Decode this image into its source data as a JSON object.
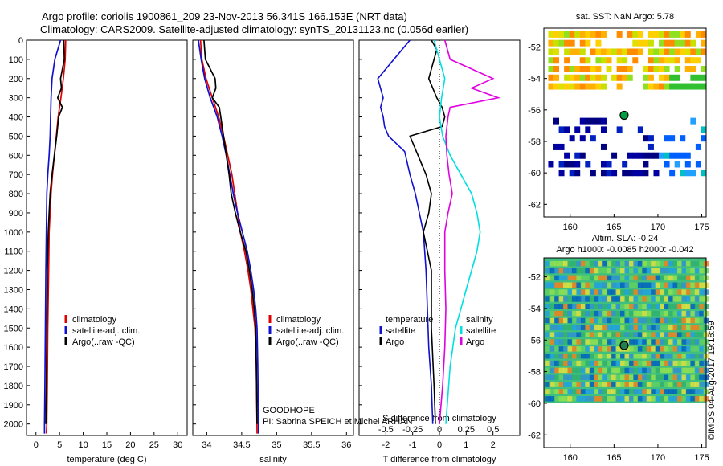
{
  "header": {
    "title_line1": "Argo profile: coriolis 1900861_209 23-Nov-2013 56.341S 166.153E (NRT data)",
    "title_line2": "Climatology: CARS2009. Satellite-adjusted climatology: synTS_20131123.nc (0.056d earlier)"
  },
  "colors": {
    "climatology": "#e00000",
    "satellite": "#1010d0",
    "argo": "#000000",
    "argo_salinity": "#e000e0",
    "satellite_salinity": "#00e0e0"
  },
  "chart_data": [
    {
      "type": "line",
      "id": "temperature",
      "xlabel": "temperature (deg C)",
      "ylabel": "",
      "xlim": [
        -2,
        32
      ],
      "ylim": [
        2060,
        0
      ],
      "x_ticks": [
        "0",
        "5",
        "10",
        "15",
        "20",
        "25",
        "30"
      ],
      "y_ticks": [
        "0",
        "100",
        "200",
        "300",
        "400",
        "500",
        "600",
        "700",
        "800",
        "900",
        "1000",
        "1100",
        "1200",
        "1300",
        "1400",
        "1500",
        "1600",
        "1700",
        "1800",
        "1900",
        "2000"
      ],
      "legend": [
        "climatology",
        "satellite-adj. clim.",
        "Argo(..raw -QC)"
      ],
      "series": [
        {
          "name": "climatology",
          "points": [
            [
              6.3,
              0
            ],
            [
              6.2,
              100
            ],
            [
              5.8,
              200
            ],
            [
              5.3,
              300
            ],
            [
              4.7,
              400
            ],
            [
              4.3,
              500
            ],
            [
              3.9,
              600
            ],
            [
              3.5,
              700
            ],
            [
              3.2,
              800
            ],
            [
              3.0,
              900
            ],
            [
              2.8,
              1000
            ],
            [
              2.7,
              1200
            ],
            [
              2.5,
              1500
            ],
            [
              2.4,
              1800
            ],
            [
              2.3,
              2000
            ],
            [
              2.2,
              2050
            ]
          ]
        },
        {
          "name": "satellite-adj. clim.",
          "points": [
            [
              5.2,
              0
            ],
            [
              4.0,
              100
            ],
            [
              3.4,
              200
            ],
            [
              3.2,
              300
            ],
            [
              3.1,
              400
            ],
            [
              3.0,
              500
            ],
            [
              2.8,
              600
            ],
            [
              2.5,
              700
            ],
            [
              2.3,
              800
            ],
            [
              2.2,
              1000
            ],
            [
              2.1,
              1200
            ],
            [
              2.0,
              1500
            ],
            [
              1.9,
              1800
            ],
            [
              1.8,
              2000
            ],
            [
              1.8,
              2050
            ]
          ]
        },
        {
          "name": "Argo(..raw -QC)",
          "points": [
            [
              5.9,
              0
            ],
            [
              6.0,
              100
            ],
            [
              5.2,
              200
            ],
            [
              5.4,
              250
            ],
            [
              4.6,
              300
            ],
            [
              5.6,
              350
            ],
            [
              4.8,
              400
            ],
            [
              4.4,
              500
            ],
            [
              3.9,
              600
            ],
            [
              3.4,
              700
            ],
            [
              3.0,
              800
            ],
            [
              2.8,
              900
            ],
            [
              2.6,
              1000
            ],
            [
              2.4,
              1200
            ],
            [
              2.3,
              1500
            ],
            [
              2.2,
              1800
            ],
            [
              2.1,
              2000
            ]
          ]
        }
      ]
    },
    {
      "type": "line",
      "id": "salinity",
      "xlabel": "salinity",
      "ylabel": "",
      "xlim": [
        33.8,
        36.1
      ],
      "ylim": [
        2060,
        0
      ],
      "x_ticks": [
        "34",
        "34.5",
        "35",
        "35.5",
        "36"
      ],
      "legend": [
        "climatology",
        "satellite-adj. clim.",
        "Argo(..raw -QC)"
      ],
      "series": [
        {
          "name": "climatology",
          "points": [
            [
              33.91,
              0
            ],
            [
              33.93,
              100
            ],
            [
              33.99,
              200
            ],
            [
              34.08,
              300
            ],
            [
              34.17,
              400
            ],
            [
              34.24,
              500
            ],
            [
              34.3,
              600
            ],
            [
              34.36,
              700
            ],
            [
              34.4,
              800
            ],
            [
              34.44,
              900
            ],
            [
              34.48,
              1000
            ],
            [
              34.54,
              1100
            ],
            [
              34.59,
              1200
            ],
            [
              34.63,
              1300
            ],
            [
              34.66,
              1400
            ],
            [
              34.69,
              1500
            ],
            [
              34.71,
              1700
            ],
            [
              34.72,
              2050
            ]
          ]
        },
        {
          "name": "satellite-adj. clim.",
          "points": [
            [
              33.88,
              0
            ],
            [
              33.92,
              100
            ],
            [
              33.97,
              200
            ],
            [
              34.05,
              300
            ],
            [
              34.15,
              400
            ],
            [
              34.22,
              500
            ],
            [
              34.28,
              600
            ],
            [
              34.33,
              700
            ],
            [
              34.38,
              800
            ],
            [
              34.44,
              900
            ],
            [
              34.51,
              1000
            ],
            [
              34.58,
              1100
            ],
            [
              34.63,
              1200
            ],
            [
              34.67,
              1300
            ],
            [
              34.7,
              1400
            ],
            [
              34.72,
              1500
            ],
            [
              34.73,
              1700
            ],
            [
              34.74,
              2000
            ],
            [
              34.74,
              2050
            ]
          ]
        },
        {
          "name": "Argo(..raw -QC)",
          "points": [
            [
              33.96,
              0
            ],
            [
              33.98,
              100
            ],
            [
              34.12,
              200
            ],
            [
              34.13,
              250
            ],
            [
              34.08,
              300
            ],
            [
              34.18,
              350
            ],
            [
              34.2,
              400
            ],
            [
              34.24,
              500
            ],
            [
              34.28,
              600
            ],
            [
              34.32,
              700
            ],
            [
              34.35,
              800
            ],
            [
              34.41,
              900
            ],
            [
              34.48,
              1000
            ],
            [
              34.56,
              1100
            ],
            [
              34.61,
              1200
            ],
            [
              34.65,
              1300
            ],
            [
              34.68,
              1400
            ],
            [
              34.7,
              1500
            ],
            [
              34.71,
              1700
            ],
            [
              34.72,
              2000
            ]
          ]
        }
      ]
    },
    {
      "type": "line",
      "id": "difference",
      "xlabel": "T difference from climatology",
      "x2label": "S difference from climatology",
      "ylabel": "",
      "xlim": [
        -3,
        3
      ],
      "x_ticks": [
        "-2",
        "-1",
        "0",
        "1",
        "2"
      ],
      "x2_ticks": [
        "-0.5",
        "-0.25",
        "0",
        "0.25",
        "0.5"
      ],
      "legend_temperature": [
        "temperature",
        "satellite",
        "Argo"
      ],
      "legend_salinity": [
        "salinity",
        "satellite",
        "Argo"
      ],
      "series": [
        {
          "name": "satellite",
          "group": "temperature",
          "points": [
            [
              -1.1,
              0
            ],
            [
              -2.3,
              200
            ],
            [
              -2.1,
              300
            ],
            [
              -2.2,
              350
            ],
            [
              -2.1,
              400
            ],
            [
              -2.05,
              450
            ],
            [
              -1.9,
              500
            ],
            [
              -1.3,
              580
            ],
            [
              -1.1,
              700
            ],
            [
              -0.9,
              800
            ],
            [
              -0.6,
              1000
            ],
            [
              -0.5,
              1200
            ],
            [
              -0.45,
              1400
            ],
            [
              -0.4,
              1600
            ],
            [
              -0.3,
              1800
            ],
            [
              -0.25,
              2000
            ]
          ]
        },
        {
          "name": "Argo",
          "group": "temperature",
          "points": [
            [
              -0.3,
              0
            ],
            [
              -0.1,
              50
            ],
            [
              -0.2,
              100
            ],
            [
              -0.4,
              200
            ],
            [
              -0.1,
              300
            ],
            [
              0.1,
              350
            ],
            [
              0.2,
              400
            ],
            [
              0.1,
              450
            ],
            [
              -1.1,
              500
            ],
            [
              -0.8,
              600
            ],
            [
              -0.5,
              700
            ],
            [
              -0.3,
              800
            ],
            [
              -0.4,
              900
            ],
            [
              -0.6,
              1000
            ],
            [
              -0.3,
              1200
            ],
            [
              -0.3,
              1500
            ],
            [
              -0.2,
              1800
            ],
            [
              -0.15,
              2000
            ]
          ]
        },
        {
          "name": "satellite",
          "group": "salinity",
          "points": [
            [
              -0.05,
              0
            ],
            [
              0.0,
              100
            ],
            [
              0.05,
              200
            ],
            [
              0.02,
              300
            ],
            [
              0.0,
              400
            ],
            [
              0.03,
              500
            ],
            [
              0.1,
              600
            ],
            [
              0.2,
              700
            ],
            [
              0.3,
              800
            ],
            [
              0.35,
              900
            ],
            [
              0.38,
              1000
            ],
            [
              0.35,
              1100
            ],
            [
              0.3,
              1200
            ],
            [
              0.25,
              1300
            ],
            [
              0.2,
              1400
            ],
            [
              0.15,
              1500
            ],
            [
              0.1,
              1700
            ],
            [
              0.06,
              2000
            ]
          ]
        },
        {
          "name": "Argo",
          "group": "salinity",
          "points": [
            [
              0.05,
              0
            ],
            [
              0.1,
              100
            ],
            [
              0.5,
              200
            ],
            [
              0.3,
              250
            ],
            [
              0.55,
              300
            ],
            [
              0.1,
              350
            ],
            [
              0.08,
              400
            ],
            [
              0.06,
              500
            ],
            [
              0.07,
              600
            ],
            [
              0.09,
              700
            ],
            [
              0.12,
              800
            ],
            [
              0.08,
              900
            ],
            [
              0.05,
              1000
            ],
            [
              0.05,
              1200
            ],
            [
              0.06,
              1400
            ],
            [
              0.05,
              1600
            ],
            [
              0.03,
              1800
            ],
            [
              0.0,
              2000
            ]
          ]
        }
      ]
    },
    {
      "type": "heatmap",
      "id": "sst-map",
      "title": "sat. SST: NaN Argo: 5.78",
      "x_ticks": [
        "160",
        "165",
        "170",
        "175"
      ],
      "y_ticks": [
        "-52",
        "-54",
        "-56",
        "-58",
        "-60",
        "-62"
      ],
      "xlim": [
        157,
        175.5
      ],
      "ylim": [
        -62.8,
        -50.8
      ],
      "float_position": [
        166.153,
        -56.341
      ]
    },
    {
      "type": "heatmap",
      "id": "sla-map",
      "title_line1": "Altim. SLA: -0.24",
      "title_line2": "Argo h1000: -0.0085 h2000: -0.042",
      "x_ticks": [
        "160",
        "165",
        "170",
        "175"
      ],
      "y_ticks": [
        "-52",
        "-54",
        "-56",
        "-58",
        "-60",
        "-62"
      ],
      "xlim": [
        157,
        175.5
      ],
      "ylim": [
        -62.8,
        -50.8
      ],
      "float_position": [
        166.153,
        -56.341
      ]
    }
  ],
  "annotations": {
    "goodhope": "GOODHOPE",
    "pi": "PI: Sabrina SPEICH et Michel ARHAN",
    "credit": "©IMOS 04-Aug-2017 19:18:59"
  }
}
